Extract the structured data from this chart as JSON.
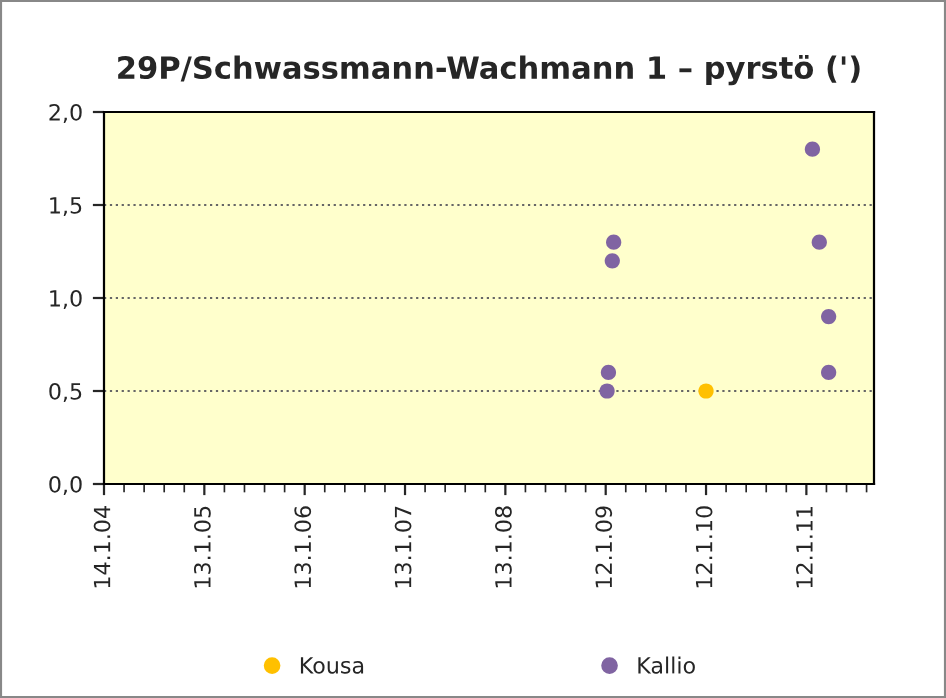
{
  "chart_data": {
    "type": "scatter",
    "title": "29P/Schwassmann-Wachmann 1 – pyrstö (')",
    "series": [
      {
        "name": "Kousa",
        "color": "#ffc000",
        "x": [
          "2010-01-12"
        ],
        "values": [
          0.5
        ]
      },
      {
        "name": "Kallio",
        "color": "#8064a2",
        "x": [
          "2009-01-17",
          "2009-01-22",
          "2009-02-05",
          "2009-02-10",
          "2011-02-03",
          "2011-02-28",
          "2011-04-03",
          "2011-04-03"
        ],
        "values": [
          0.5,
          0.6,
          1.2,
          1.3,
          1.8,
          1.3,
          0.9,
          0.6
        ]
      }
    ],
    "xlim": [
      "2004-01-14",
      "2011-09-15"
    ],
    "xticks": [
      {
        "value": "2004-01-14",
        "label": "14.1.04"
      },
      {
        "value": "2005-01-13",
        "label": "13.1.05"
      },
      {
        "value": "2006-01-13",
        "label": "13.1.06"
      },
      {
        "value": "2007-01-13",
        "label": "13.1.07"
      },
      {
        "value": "2008-01-13",
        "label": "13.1.08"
      },
      {
        "value": "2009-01-12",
        "label": "12.1.09"
      },
      {
        "value": "2010-01-12",
        "label": "12.1.10"
      },
      {
        "value": "2011-01-12",
        "label": "12.1.11"
      }
    ],
    "ylim": [
      0,
      2
    ],
    "yticks": [
      {
        "value": 0,
        "label": "0,0"
      },
      {
        "value": 0.5,
        "label": "0,5"
      },
      {
        "value": 1,
        "label": "1,0"
      },
      {
        "value": 1.5,
        "label": "1,5"
      },
      {
        "value": 2,
        "label": "2,0"
      }
    ],
    "grid": "y",
    "legend": "bottom",
    "marker": "circle"
  }
}
